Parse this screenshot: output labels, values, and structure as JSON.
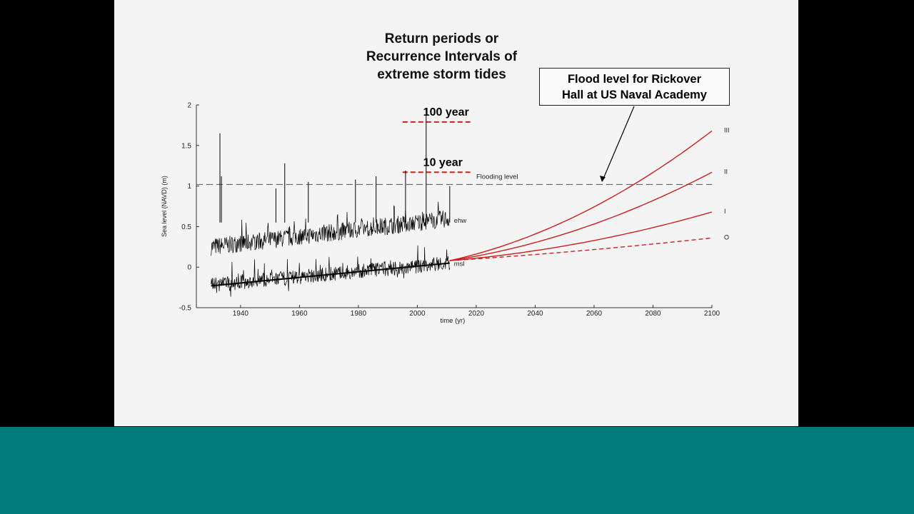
{
  "slide": {
    "title_lines": [
      "Return periods or",
      "Recurrence Intervals of",
      "extreme storm tides"
    ],
    "callout_lines": [
      "Flood level for Rickover",
      "Hall at US Naval Academy"
    ]
  },
  "colors": {
    "background": "#000000",
    "slide": "#f4f4f4",
    "bottom_band": "#017b7b",
    "observed": "#000000",
    "projection": "#cc1f1f",
    "flood_line": "#555555"
  },
  "chart_data": {
    "type": "line",
    "xlabel": "time (yr)",
    "ylabel": "Sea level (NAVD) (m)",
    "xlim": [
      1925,
      2100
    ],
    "ylim": [
      -0.5,
      2
    ],
    "x_ticks": [
      1940,
      1960,
      1980,
      2000,
      2020,
      2040,
      2060,
      2080,
      2100
    ],
    "y_ticks": [
      -0.5,
      0,
      0.5,
      1,
      1.5,
      2
    ],
    "x_tick_labels": [
      "1940",
      "1960",
      "1980",
      "2000",
      "2020",
      "2040",
      "2060",
      "2080",
      "2100"
    ],
    "y_tick_labels": [
      "-0.5",
      "0",
      "0.5",
      "1",
      "1.5",
      "2"
    ],
    "flooding_level": {
      "label": "Flooding level",
      "y": 1.02
    },
    "return_levels": [
      {
        "label": "100 year",
        "y": 1.79,
        "x_range": [
          1995,
          2018
        ]
      },
      {
        "label": "10 year",
        "y": 1.17,
        "x_range": [
          1995,
          2018
        ]
      }
    ],
    "observed_series": [
      {
        "name": "ehw",
        "x_range": [
          1930,
          2011
        ],
        "start_level": 0.25,
        "end_level": 0.6
      },
      {
        "name": "msl",
        "x_range": [
          1930,
          2011
        ],
        "start_level": -0.22,
        "end_level": 0.05
      }
    ],
    "msl_trend": {
      "x": [
        1930,
        2011
      ],
      "y": [
        -0.23,
        0.05
      ]
    },
    "projections": [
      {
        "name": "III",
        "x": [
          2011,
          2100
        ],
        "y": [
          0.08,
          1.68
        ],
        "style": "solid"
      },
      {
        "name": "II",
        "x": [
          2011,
          2100
        ],
        "y": [
          0.08,
          1.17
        ],
        "style": "solid"
      },
      {
        "name": "I",
        "x": [
          2011,
          2100
        ],
        "y": [
          0.08,
          0.68
        ],
        "style": "solid"
      },
      {
        "name": "O",
        "x": [
          2011,
          2100
        ],
        "y": [
          0.08,
          0.36
        ],
        "style": "dashed"
      }
    ],
    "ehw_peaks": [
      {
        "x": 1933,
        "y": 1.65
      },
      {
        "x": 1933.5,
        "y": 1.12
      },
      {
        "x": 1955,
        "y": 1.28
      },
      {
        "x": 1952,
        "y": 0.97
      },
      {
        "x": 1963,
        "y": 1.05
      },
      {
        "x": 1979,
        "y": 1.08
      },
      {
        "x": 1986,
        "y": 1.12
      },
      {
        "x": 1996,
        "y": 1.19
      },
      {
        "x": 2003,
        "y": 1.95
      },
      {
        "x": 2011,
        "y": 1.0
      }
    ]
  }
}
